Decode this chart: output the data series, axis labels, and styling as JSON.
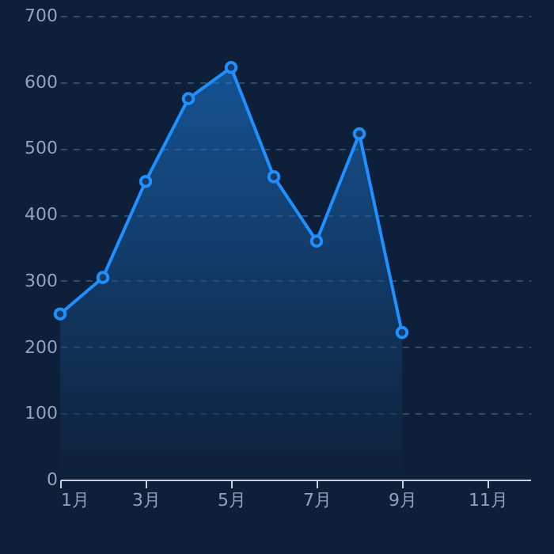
{
  "chart_data": {
    "type": "area",
    "categories": [
      "1月",
      null,
      "3月",
      null,
      "5月",
      null,
      "7月",
      null,
      "9月",
      null,
      "11月",
      null
    ],
    "series": [
      {
        "color": "#1e90ff",
        "values": [
          250,
          305,
          450,
          575,
          622,
          457,
          360,
          522,
          222,
          null,
          null,
          null
        ]
      }
    ],
    "ylim": [
      0,
      700
    ],
    "yticks": [
      0,
      100,
      200,
      300,
      400,
      500,
      600,
      700
    ],
    "grid": "y",
    "marker": "circle",
    "line_style": "solid"
  }
}
